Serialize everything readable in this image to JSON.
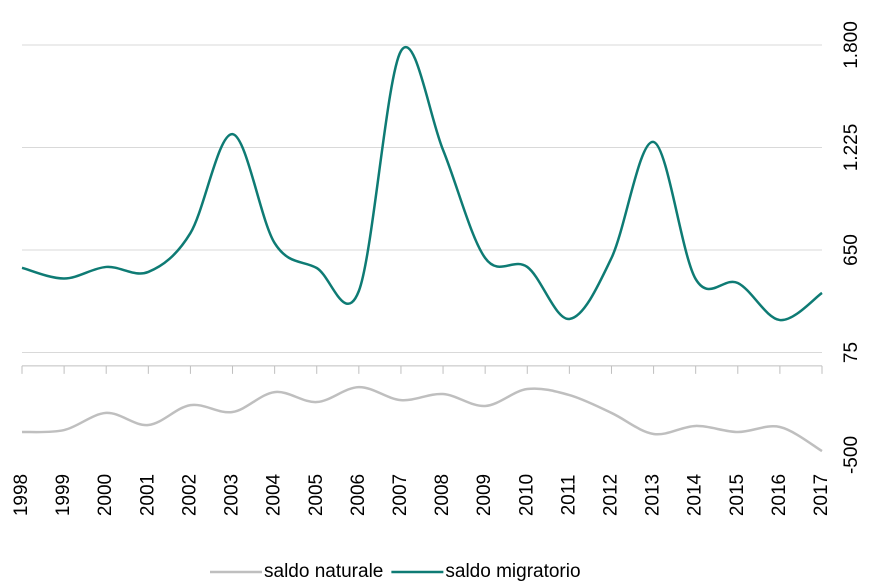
{
  "chart_data": {
    "type": "line",
    "categories": [
      "1998",
      "1999",
      "2000",
      "2001",
      "2002",
      "2003",
      "2004",
      "2005",
      "2006",
      "2007",
      "2008",
      "2009",
      "2010",
      "2011",
      "2012",
      "2013",
      "2014",
      "2015",
      "2016",
      "2017"
    ],
    "series": [
      {
        "name": "saldo naturale",
        "color": "#bfbfbf",
        "values": [
          -371,
          -360,
          -264,
          -332,
          -220,
          -259,
          -147,
          -203,
          -119,
          -192,
          -158,
          -225,
          -130,
          -164,
          -264,
          -382,
          -337,
          -371,
          -343,
          -478
        ]
      },
      {
        "name": "saldo migratorio",
        "color": "#0e7b74",
        "values": [
          550,
          490,
          555,
          527,
          745,
          1300,
          689,
          549,
          420,
          1766,
          1211,
          605,
          555,
          263,
          605,
          1256,
          487,
          465,
          257,
          409
        ]
      }
    ],
    "ylim": [
      -500,
      1800
    ],
    "yticks": [
      {
        "value": 1800,
        "label": "1.800"
      },
      {
        "value": 1225,
        "label": "1.225"
      },
      650,
      75,
      -500
    ],
    "grid": true
  }
}
